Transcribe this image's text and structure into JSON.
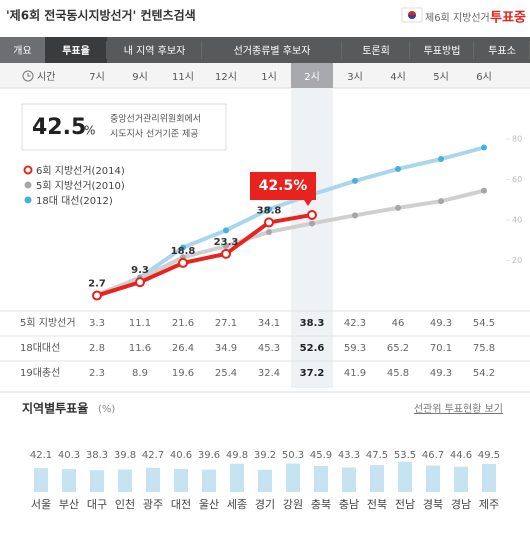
{
  "header": {
    "title": "'제6회 전국동시지방선거' 컨텐츠검색",
    "badge": "제6회 지방선거",
    "status": "투표중"
  },
  "tabs": {
    "items": [
      "개요",
      "투표율",
      "내 지역 후보자",
      "선거종류별 후보자",
      "토론회",
      "투표방법",
      "투표소"
    ],
    "active": "투표율"
  },
  "time_label": "시간",
  "summary": {
    "value": 42.5,
    "unit": "%",
    "note": [
      "중앙선거관리위원회에서",
      "시도지사 선거기준 제공"
    ]
  },
  "chart_data": [
    {
      "type": "line",
      "categories": [
        "7시",
        "9시",
        "11시",
        "12시",
        "1시",
        "2시",
        "3시",
        "4시",
        "5시",
        "6시"
      ],
      "highlight": "2시",
      "ylim": [
        0,
        80
      ],
      "yticks": [
        20,
        40,
        60,
        80
      ],
      "series": [
        {
          "name": "18대 대선(2012)",
          "color": "#a9d6ec",
          "dot_color": "#45b0e0",
          "values": [
            2.8,
            11.6,
            26.4,
            34.9,
            45.3,
            52.6,
            59.3,
            65.2,
            70.1,
            75.8
          ]
        },
        {
          "name": "5회 지방선거(2010)",
          "color": "#cfcfcf",
          "dot_color": "#a6a6a6",
          "values": [
            3.3,
            11.1,
            21.6,
            27.1,
            34.1,
            38.3,
            42.3,
            46.0,
            49.3,
            54.5
          ]
        },
        {
          "name": "6회 지방선거(2014)",
          "color": "#e8231e",
          "dot_color": "#e8231e",
          "values": [
            2.7,
            9.3,
            18.8,
            23.3,
            38.8,
            42.5,
            null,
            null,
            null,
            null
          ],
          "value_labels": [
            "2.7",
            "9.3",
            "18.8",
            "23.3",
            "38.8",
            "42.5%",
            null,
            null,
            null,
            null
          ]
        }
      ]
    },
    {
      "type": "bar",
      "title": "지역별투표율",
      "unit": "(%)",
      "link": "선관위 투표현황 보기",
      "color": "#c5e3f1",
      "ylim": [
        0,
        60
      ],
      "categories": [
        "서울",
        "부산",
        "대구",
        "인천",
        "광주",
        "대전",
        "울산",
        "세종",
        "경기",
        "강원",
        "충북",
        "충남",
        "전북",
        "전남",
        "경북",
        "경남",
        "제주"
      ],
      "values": [
        42.1,
        40.3,
        38.3,
        39.8,
        42.7,
        40.6,
        39.6,
        49.8,
        39.2,
        50.3,
        45.9,
        43.3,
        47.5,
        53.5,
        46.7,
        44.6,
        49.5
      ]
    }
  ],
  "table": {
    "rows": [
      {
        "label": "5회 지방선거",
        "values": [
          3.3,
          11.1,
          21.6,
          27.1,
          34.1,
          38.3,
          42.3,
          46.0,
          49.3,
          54.5
        ]
      },
      {
        "label": "18대대선",
        "values": [
          2.8,
          11.6,
          26.4,
          34.9,
          45.3,
          52.6,
          59.3,
          65.2,
          70.1,
          75.8
        ]
      },
      {
        "label": "19대총선",
        "values": [
          2.3,
          8.9,
          19.6,
          25.4,
          32.4,
          37.2,
          41.9,
          45.8,
          49.3,
          54.2
        ]
      }
    ]
  }
}
